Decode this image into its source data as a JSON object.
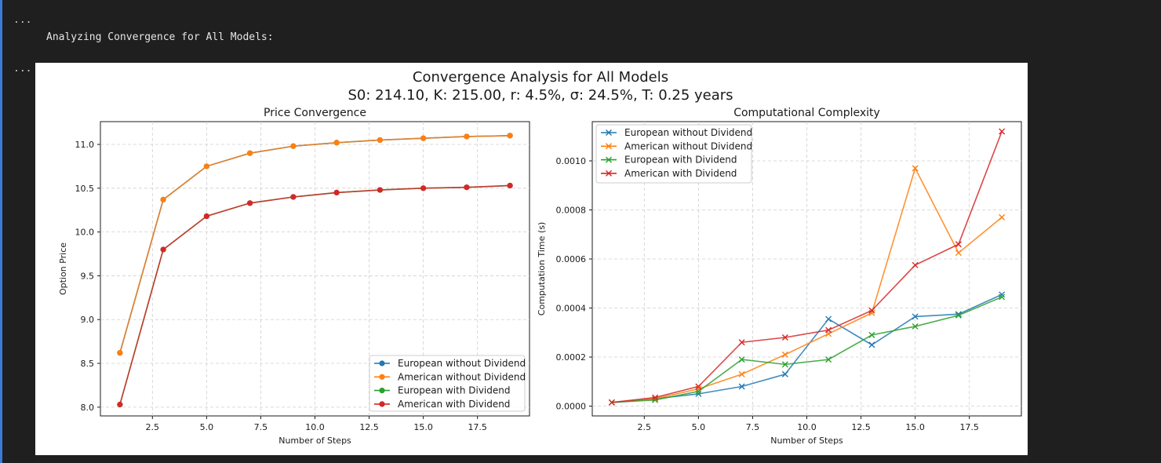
{
  "console": {
    "ellipsis_top": "...",
    "ellipsis_mid": "...",
    "message": "Analyzing Convergence for All Models:"
  },
  "chart_data": {
    "suptitle": "Convergence Analysis for All Models",
    "params_line": "S0: 214.10, K: 215.00, r: 4.5%, σ: 24.5%, T: 0.25 years",
    "colors": {
      "European without Dividend": "#1f77b4",
      "American without Dividend": "#ff7f0e",
      "European with Dividend": "#2ca02c",
      "American with Dividend": "#d62728"
    },
    "subplots": [
      {
        "type": "line",
        "title": "Price Convergence",
        "xlabel": "Number of Steps",
        "ylabel": "Option Price",
        "marker": "circle",
        "xlim": [
          0.1,
          19.9
        ],
        "ylim": [
          7.9,
          11.26
        ],
        "xticks": [
          2.5,
          5.0,
          7.5,
          10.0,
          12.5,
          15.0,
          17.5
        ],
        "yticks": [
          8.0,
          8.5,
          9.0,
          9.5,
          10.0,
          10.5,
          11.0
        ],
        "grid": true,
        "legend_position": "lower-right",
        "x": [
          1,
          3,
          5,
          7,
          9,
          11,
          13,
          15,
          17,
          19
        ],
        "series": [
          {
            "name": "European without Dividend",
            "values": [
              8.62,
              10.37,
              10.75,
              10.9,
              10.98,
              11.02,
              11.05,
              11.07,
              11.09,
              11.1
            ]
          },
          {
            "name": "American without Dividend",
            "values": [
              8.62,
              10.37,
              10.75,
              10.9,
              10.98,
              11.02,
              11.05,
              11.07,
              11.09,
              11.1
            ]
          },
          {
            "name": "European with Dividend",
            "values": [
              8.03,
              9.8,
              10.18,
              10.33,
              10.4,
              10.45,
              10.48,
              10.5,
              10.51,
              10.53
            ]
          },
          {
            "name": "American with Dividend",
            "values": [
              8.03,
              9.8,
              10.18,
              10.33,
              10.4,
              10.45,
              10.48,
              10.5,
              10.51,
              10.53
            ]
          }
        ]
      },
      {
        "type": "line",
        "title": "Computational Complexity",
        "xlabel": "Number of Steps",
        "ylabel": "Computation Time (s)",
        "marker": "x",
        "xlim": [
          0.1,
          19.9
        ],
        "ylim": [
          -4e-05,
          0.00116
        ],
        "xticks": [
          2.5,
          5.0,
          7.5,
          10.0,
          12.5,
          15.0,
          17.5
        ],
        "yticks": [
          0.0,
          0.0002,
          0.0004,
          0.0006,
          0.0008,
          0.001
        ],
        "ytick_labels": [
          "0.0000",
          "0.0002",
          "0.0004",
          "0.0006",
          "0.0008",
          "0.0010"
        ],
        "grid": true,
        "legend_position": "upper-left",
        "x": [
          1,
          3,
          5,
          7,
          9,
          11,
          13,
          15,
          17,
          19
        ],
        "series": [
          {
            "name": "European without Dividend",
            "values": [
              1.5e-05,
              3e-05,
              5e-05,
              8e-05,
              0.00013,
              0.000355,
              0.00025,
              0.000365,
              0.000375,
              0.000455
            ]
          },
          {
            "name": "American without Dividend",
            "values": [
              1.5e-05,
              3e-05,
              7e-05,
              0.00013,
              0.00021,
              0.000295,
              0.00038,
              0.00097,
              0.000625,
              0.00077
            ]
          },
          {
            "name": "European with Dividend",
            "values": [
              1.5e-05,
              2.5e-05,
              6e-05,
              0.00019,
              0.00017,
              0.00019,
              0.00029,
              0.000325,
              0.00037,
              0.000445
            ]
          },
          {
            "name": "American with Dividend",
            "values": [
              1.5e-05,
              3.5e-05,
              8e-05,
              0.00026,
              0.00028,
              0.00031,
              0.00039,
              0.000575,
              0.00066,
              0.00112
            ]
          }
        ]
      }
    ]
  }
}
